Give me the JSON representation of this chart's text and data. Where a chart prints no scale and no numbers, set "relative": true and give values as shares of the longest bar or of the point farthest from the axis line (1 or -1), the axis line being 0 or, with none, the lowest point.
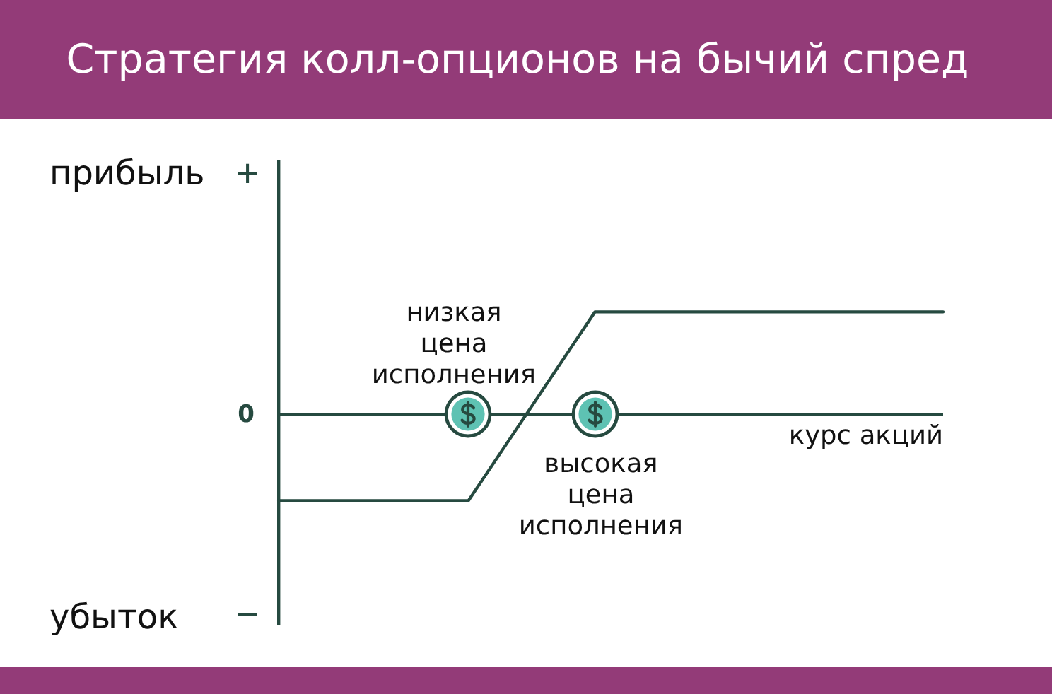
{
  "chart_data": {
    "type": "line",
    "title": "Стратегия колл-опционов на бычий спред",
    "xlabel": "курс акций",
    "relative": true,
    "categories": [
      null,
      null,
      null,
      null,
      null,
      null,
      null,
      null,
      null,
      null,
      null,
      null,
      null,
      null,
      null,
      null,
      null,
      null,
      null,
      null,
      null,
      null
    ],
    "values": [
      -0.84,
      -0.84,
      -0.84,
      -0.84,
      -0.84,
      -0.84,
      -0.84,
      -0.38,
      0.08,
      0.54,
      1,
      1,
      1,
      1,
      1,
      1,
      1,
      1,
      1,
      1,
      1,
      1
    ],
    "color": "#264a40",
    "ref_lines": [
      {
        "axis": "y",
        "value": 0,
        "label": "0",
        "color": "#264a40"
      }
    ],
    "annotations": [
      "прибыль",
      "+",
      "убыток",
      "−",
      "низкая цена исполнения",
      "высокая цена исполнения"
    ],
    "legend": false,
    "grid": false
  }
}
